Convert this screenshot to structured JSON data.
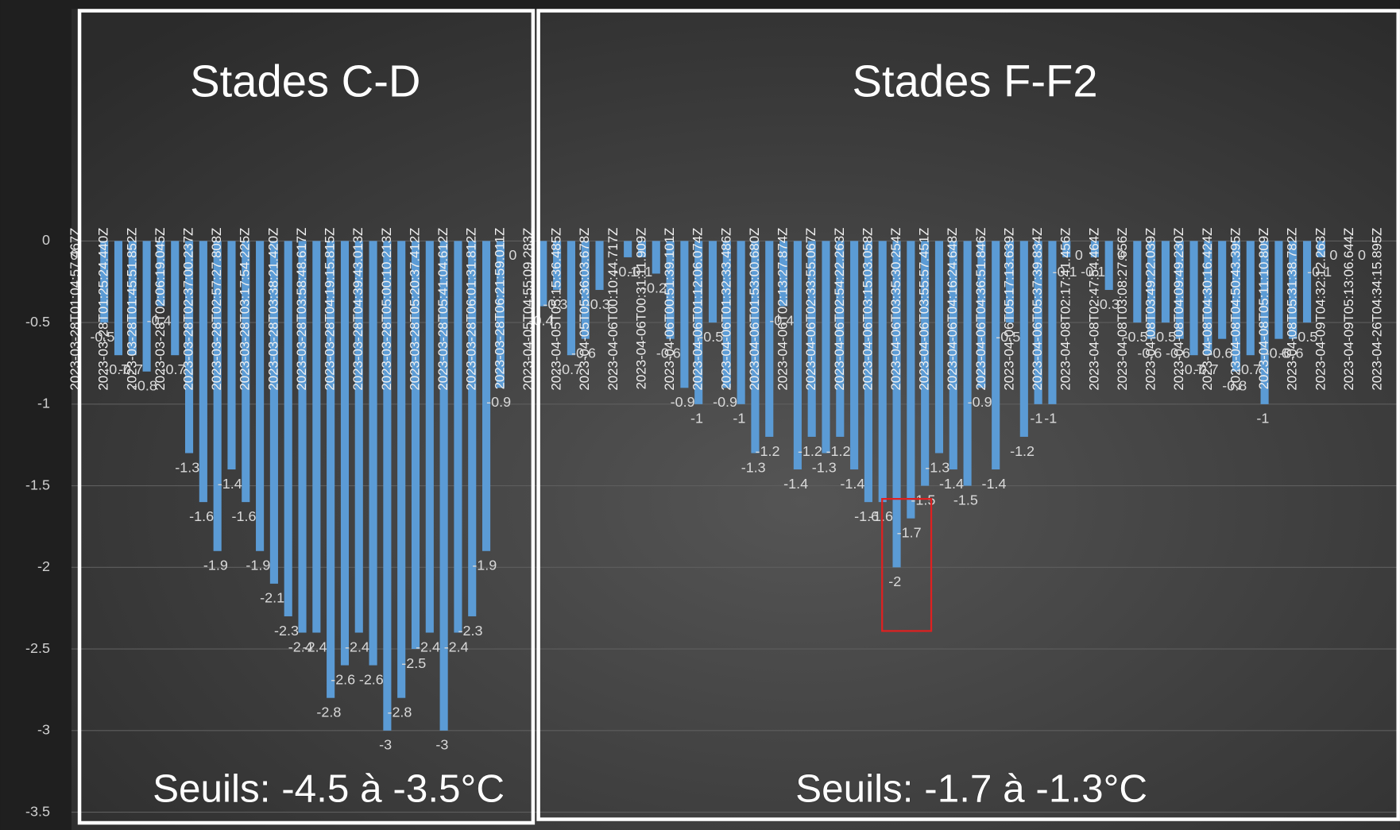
{
  "chart_data": {
    "type": "bar",
    "annotations": [
      "Stades C-D",
      "Stades F-F2",
      "Seuils: -4.5 à -3.5°C",
      "Seuils: -1.7 à -1.3°C"
    ],
    "categories": [
      "2023-03-28T01:04:57.467Z",
      null,
      "2023-03-28T01:25:24.440Z",
      null,
      "2023-03-28T01:45:51.852Z",
      null,
      "2023-03-28T02:06:19.045Z",
      null,
      "2023-03-28T02:37:00.237Z",
      null,
      "2023-03-28T02:57:27.808Z",
      null,
      "2023-03-28T03:17:54.225Z",
      null,
      "2023-03-28T03:38:21.420Z",
      null,
      "2023-03-28T03:58:48.617Z",
      null,
      "2023-03-28T04:19:15.815Z",
      null,
      "2023-03-28T04:39:43.013Z",
      null,
      "2023-03-28T05:00:10.213Z",
      null,
      "2023-03-28T05:20:37.412Z",
      null,
      "2023-03-28T05:41:04.612Z",
      null,
      "2023-03-28T06:01:31.812Z",
      null,
      "2023-03-28T06:21:59.011Z",
      null,
      "2023-04-05T04:55:09.283Z",
      null,
      "2023-04-05T05:15:36.485Z",
      null,
      "2023-04-05T05:36:03.678Z",
      null,
      "2023-04-06T00:10:44.717Z",
      null,
      "2023-04-06T00:31:11.909Z",
      null,
      "2023-04-06T00:51:39.101Z",
      null,
      "2023-04-06T01:12:06.074Z",
      null,
      "2023-04-06T01:32:33.486Z",
      null,
      "2023-04-06T01:53:00.680Z",
      null,
      "2023-04-06T02:13:27.874Z",
      null,
      "2023-04-06T02:33:55.067Z",
      null,
      "2023-04-06T02:54:22.263Z",
      null,
      "2023-04-06T03:15:03.058Z",
      null,
      "2023-04-06T03:35:30.254Z",
      null,
      "2023-04-06T03:55:57.451Z",
      null,
      "2023-04-06T04:16:24.648Z",
      null,
      "2023-04-06T04:36:51.846Z",
      null,
      "2023-04-06T05:17:13.639Z",
      null,
      "2023-04-06T05:37:39.834Z",
      null,
      "2023-04-08T02:17:41.456Z",
      null,
      "2023-04-08T02:47:54.464Z",
      null,
      "2023-04-08T03:08:27.656Z",
      null,
      "2023-04-08T03:49:22.039Z",
      null,
      "2023-04-08T04:09:49.230Z",
      null,
      "2023-04-08T04:30:16.424Z",
      null,
      "2023-04-08T04:50:43.395Z",
      null,
      "2023-04-08T05:11:10.809Z",
      null,
      "2023-04-08T05:31:38.782Z",
      null,
      "2023-04-09T04:32:12.263Z",
      null,
      "2023-04-09T05:13:06.644Z",
      null,
      "2023-04-26T04:34:15.895Z"
    ],
    "values": [
      0,
      null,
      -0.5,
      -0.7,
      -0.7,
      -0.8,
      -0.4,
      -0.7,
      -1.3,
      -1.6,
      -1.9,
      -1.4,
      -1.6,
      -1.9,
      -2.1,
      -2.3,
      -2.4,
      -2.4,
      -2.8,
      -2.6,
      -2.4,
      -2.6,
      -3,
      -2.8,
      -2.5,
      -2.4,
      -3,
      -2.4,
      -2.3,
      -1.9,
      -0.9,
      0,
      null,
      -0.4,
      -0.3,
      -0.7,
      -0.6,
      -0.3,
      null,
      -0.1,
      -0.1,
      -0.2,
      -0.6,
      -0.9,
      -1,
      -0.5,
      -0.9,
      -1,
      -1.3,
      -1.2,
      -0.4,
      -1.4,
      -1.2,
      -1.3,
      -1.2,
      -1.4,
      -1.6,
      -1.6,
      -2,
      -1.7,
      -1.5,
      -1.3,
      -1.4,
      -1.5,
      -0.9,
      -1.4,
      -0.5,
      -1.2,
      -1,
      -1,
      -0.1,
      0,
      -0.1,
      -0.3,
      0,
      -0.5,
      -0.6,
      -0.5,
      -0.6,
      -0.7,
      -0.7,
      -0.6,
      -0.8,
      -0.7,
      -1,
      -0.6,
      -0.6,
      -0.5,
      -0.1,
      0,
      null,
      0,
      null
    ],
    "color": "#5b9bd5",
    "ylim": [
      -3.5,
      0
    ],
    "yticks": [
      0,
      -0.5,
      -1,
      -1.5,
      -2,
      -2.5,
      -3,
      -3.5
    ],
    "grid": true
  }
}
